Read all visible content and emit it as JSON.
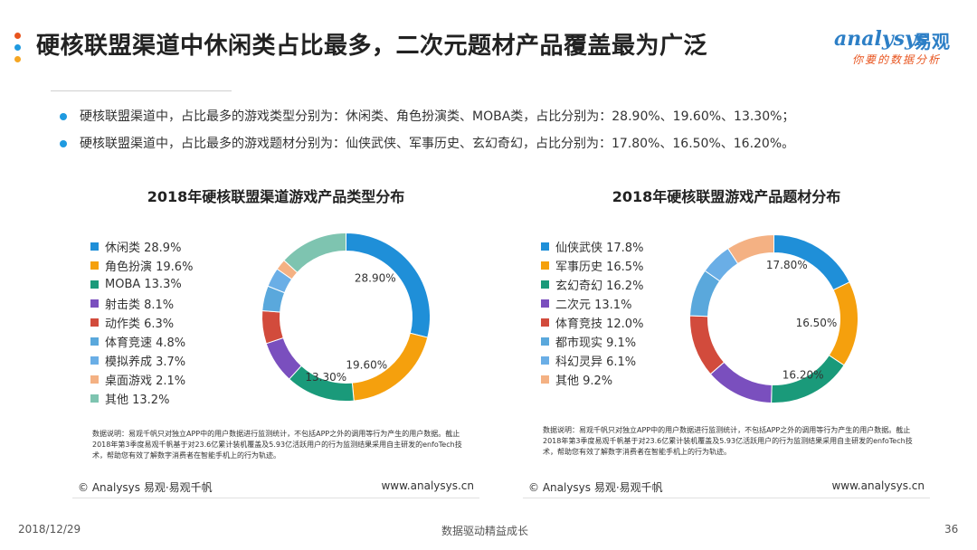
{
  "header": {
    "title": "硬核联盟渠道中休闲类占比最多，二次元题材产品覆盖最为广泛",
    "dot_colors": [
      "#e8541e",
      "#1f9ae0",
      "#f5a623"
    ],
    "logo_en": "analysys",
    "logo_cn": "易观",
    "logo_sub": "你要的数据分析"
  },
  "bullets": [
    "硬核联盟渠道中，占比最多的游戏类型分别为：休闲类、角色扮演类、MOBA类，占比分别为：28.90%、19.60%、13.30%；",
    "硬核联盟渠道中，占比最多的游戏题材分别为：仙侠武侠、军事历史、玄幻奇幻，占比分别为：17.80%、16.50%、16.20%。"
  ],
  "chart_data": [
    {
      "type": "pie",
      "title": "2018年硬核联盟渠道游戏产品类型分布",
      "legend_position": "left",
      "labels": [
        "休闲类",
        "角色扮演",
        "MOBA",
        "射击类",
        "动作类",
        "体育竞速",
        "模拟养成",
        "桌面游戏",
        "其他"
      ],
      "legend_text": [
        "休闲类 28.9%",
        "角色扮演 19.6%",
        "MOBA 13.3%",
        "射击类 8.1%",
        "动作类 6.3%",
        "体育竞速 4.8%",
        "模拟养成 3.7%",
        "桌面游戏 2.1%",
        "其他 13.2%"
      ],
      "values": [
        28.9,
        19.6,
        13.3,
        8.1,
        6.3,
        4.8,
        3.7,
        2.1,
        13.2
      ],
      "colors": [
        "#1f8fd8",
        "#f5a00d",
        "#1a9a7a",
        "#7a4fbe",
        "#d24b3c",
        "#5aa8dc",
        "#6aaee6",
        "#f4b183",
        "#7ec4b0"
      ],
      "data_labels": [
        "28.90%",
        "19.60%",
        "13.30%",
        "",
        "",
        "",
        "",
        "",
        ""
      ]
    },
    {
      "type": "pie",
      "title": "2018年硬核联盟游戏产品题材分布",
      "legend_position": "left",
      "labels": [
        "仙侠武侠",
        "军事历史",
        "玄幻奇幻",
        "二次元",
        "体育竞技",
        "都市现实",
        "科幻灵异",
        "其他"
      ],
      "legend_text": [
        "仙侠武侠 17.8%",
        "军事历史 16.5%",
        "玄幻奇幻 16.2%",
        "二次元 13.1%",
        "体育竞技 12.0%",
        "都市现实 9.1%",
        "科幻灵异 6.1%",
        "其他 9.2%"
      ],
      "values": [
        17.8,
        16.5,
        16.2,
        13.1,
        12.0,
        9.1,
        6.1,
        9.2
      ],
      "colors": [
        "#1f8fd8",
        "#f5a00d",
        "#1a9a7a",
        "#7a4fbe",
        "#d24b3c",
        "#5aa8dc",
        "#6aaee6",
        "#f4b183"
      ],
      "data_labels": [
        "17.80%",
        "16.50%",
        "16.20%",
        "",
        "",
        "",
        "",
        ""
      ]
    }
  ],
  "note": "数据说明：易观千帆只对独立APP中的用户数据进行监测统计，不包括APP之外的调用等行为产生的用户数据。截止2018年第3季度易观千帆基于对23.6亿累计装机覆盖及5.93亿活跃用户的行为监测结果采用自主研发的enfoTech技术，帮助您有效了解数字消费者在智能手机上的行为轨迹。",
  "copyright": "© Analysys 易观·易观千帆",
  "website": "www.analysys.cn",
  "footer": {
    "date": "2018/12/29",
    "center": "数据驱动精益成长",
    "page": "36"
  }
}
